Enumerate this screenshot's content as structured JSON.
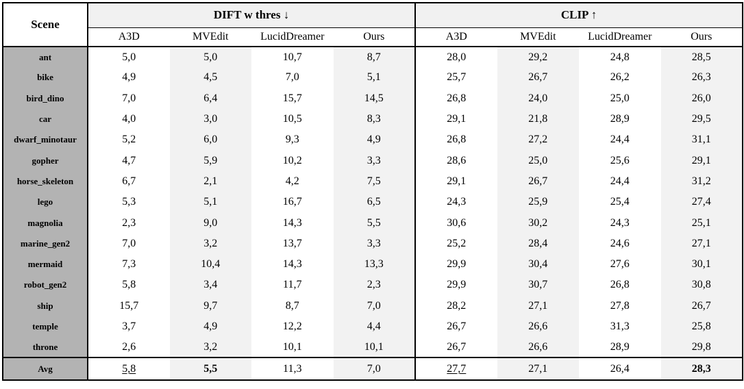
{
  "table": {
    "scene_header": "Scene",
    "groups": [
      {
        "label": "DIFT w thres ↓",
        "columns": [
          "A3D",
          "MVEdit",
          "LucidDreamer",
          "Ours"
        ]
      },
      {
        "label": "CLIP ↑",
        "columns": [
          "A3D",
          "MVEdit",
          "LucidDreamer",
          "Ours"
        ]
      }
    ],
    "rows": [
      {
        "scene": "ant",
        "dift": [
          "5,0",
          "5,0",
          "10,7",
          "8,7"
        ],
        "clip": [
          "28,0",
          "29,2",
          "24,8",
          "28,5"
        ]
      },
      {
        "scene": "bike",
        "dift": [
          "4,9",
          "4,5",
          "7,0",
          "5,1"
        ],
        "clip": [
          "25,7",
          "26,7",
          "26,2",
          "26,3"
        ]
      },
      {
        "scene": "bird_dino",
        "dift": [
          "7,0",
          "6,4",
          "15,7",
          "14,5"
        ],
        "clip": [
          "26,8",
          "24,0",
          "25,0",
          "26,0"
        ]
      },
      {
        "scene": "car",
        "dift": [
          "4,0",
          "3,0",
          "10,5",
          "8,3"
        ],
        "clip": [
          "29,1",
          "21,8",
          "28,9",
          "29,5"
        ]
      },
      {
        "scene": "dwarf_minotaur",
        "dift": [
          "5,2",
          "6,0",
          "9,3",
          "4,9"
        ],
        "clip": [
          "26,8",
          "27,2",
          "24,4",
          "31,1"
        ]
      },
      {
        "scene": "gopher",
        "dift": [
          "4,7",
          "5,9",
          "10,2",
          "3,3"
        ],
        "clip": [
          "28,6",
          "25,0",
          "25,6",
          "29,1"
        ]
      },
      {
        "scene": "horse_skeleton",
        "dift": [
          "6,7",
          "2,1",
          "4,2",
          "7,5"
        ],
        "clip": [
          "29,1",
          "26,7",
          "24,4",
          "31,2"
        ]
      },
      {
        "scene": "lego",
        "dift": [
          "5,3",
          "5,1",
          "16,7",
          "6,5"
        ],
        "clip": [
          "24,3",
          "25,9",
          "25,4",
          "27,4"
        ]
      },
      {
        "scene": "magnolia",
        "dift": [
          "2,3",
          "9,0",
          "14,3",
          "5,5"
        ],
        "clip": [
          "30,6",
          "30,2",
          "24,3",
          "25,1"
        ]
      },
      {
        "scene": "marine_gen2",
        "dift": [
          "7,0",
          "3,2",
          "13,7",
          "3,3"
        ],
        "clip": [
          "25,2",
          "28,4",
          "24,6",
          "27,1"
        ]
      },
      {
        "scene": "mermaid",
        "dift": [
          "7,3",
          "10,4",
          "14,3",
          "13,3"
        ],
        "clip": [
          "29,9",
          "30,4",
          "27,6",
          "30,1"
        ]
      },
      {
        "scene": "robot_gen2",
        "dift": [
          "5,8",
          "3,4",
          "11,7",
          "2,3"
        ],
        "clip": [
          "29,9",
          "30,7",
          "26,8",
          "30,8"
        ]
      },
      {
        "scene": "ship",
        "dift": [
          "15,7",
          "9,7",
          "8,7",
          "7,0"
        ],
        "clip": [
          "28,2",
          "27,1",
          "27,8",
          "26,7"
        ]
      },
      {
        "scene": "temple",
        "dift": [
          "3,7",
          "4,9",
          "12,2",
          "4,4"
        ],
        "clip": [
          "26,7",
          "26,6",
          "31,3",
          "25,8"
        ]
      },
      {
        "scene": "throne",
        "dift": [
          "2,6",
          "3,2",
          "10,1",
          "10,1"
        ],
        "clip": [
          "26,7",
          "26,6",
          "28,9",
          "29,8"
        ]
      }
    ],
    "avg_row": {
      "scene": "Avg",
      "dift": [
        {
          "value": "5,8",
          "style": "underline"
        },
        {
          "value": "5,5",
          "style": "bold"
        },
        {
          "value": "11,3",
          "style": "none"
        },
        {
          "value": "7,0",
          "style": "none"
        }
      ],
      "clip": [
        {
          "value": "27,7",
          "style": "underline"
        },
        {
          "value": "27,1",
          "style": "none"
        },
        {
          "value": "26,4",
          "style": "none"
        },
        {
          "value": "28,3",
          "style": "bold"
        }
      ]
    },
    "colors": {
      "scene_col_bg": "#b3b3b3",
      "stripe_bg": "#f2f2f2",
      "group_header_bg": "#f1f1f1",
      "border": "#000000"
    }
  }
}
